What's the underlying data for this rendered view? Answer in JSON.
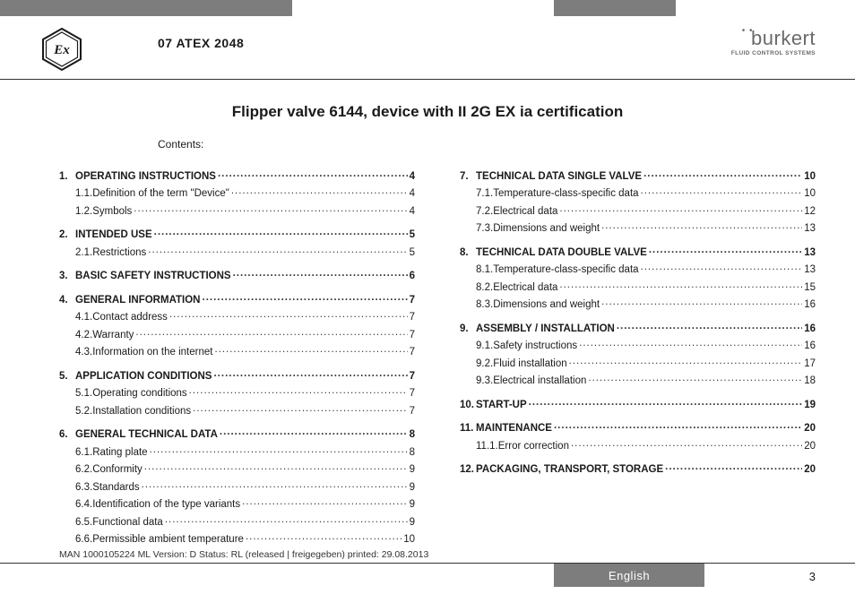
{
  "header": {
    "code": "07 ATEX 2048",
    "logo_name": "burkert",
    "logo_tag": "FLUID CONTROL SYSTEMS",
    "ex_label": "Ex"
  },
  "title": "Flipper valve 6144, device with II 2G EX ia certification",
  "contents_label": "Contents:",
  "colors": {
    "bar": "#7d7d7d",
    "text": "#1a1a1a",
    "logo": "#6a6a6a"
  },
  "toc_left": [
    {
      "type": "main",
      "num": "1.",
      "label": "OPERATING INSTRUCTIONS",
      "page": "4"
    },
    {
      "type": "sub",
      "num": "1.1.",
      "label": "Definition of the term \"Device\"",
      "page": "4"
    },
    {
      "type": "sub",
      "num": "1.2.",
      "label": "Symbols",
      "page": "4"
    },
    {
      "type": "main",
      "num": "2.",
      "label": "INTENDED USE",
      "page": "5"
    },
    {
      "type": "sub",
      "num": "2.1.",
      "label": "Restrictions",
      "page": "5"
    },
    {
      "type": "main",
      "num": "3.",
      "label": "BASIC SAFETY INSTRUCTIONS",
      "page": "6"
    },
    {
      "type": "main",
      "num": "4.",
      "label": "GENERAL INFORMATION",
      "page": "7"
    },
    {
      "type": "sub",
      "num": "4.1.",
      "label": "Contact address",
      "page": "7"
    },
    {
      "type": "sub",
      "num": "4.2.",
      "label": "Warranty",
      "page": "7"
    },
    {
      "type": "sub",
      "num": "4.3.",
      "label": "Information on the internet",
      "page": "7"
    },
    {
      "type": "main",
      "num": "5.",
      "label": "APPLICATION CONDITIONS",
      "page": "7"
    },
    {
      "type": "sub",
      "num": "5.1.",
      "label": "Operating conditions",
      "page": "7"
    },
    {
      "type": "sub",
      "num": "5.2.",
      "label": "Installation conditions",
      "page": "7"
    },
    {
      "type": "main",
      "num": "6.",
      "label": "GENERAL TECHNICAL DATA",
      "page": "8"
    },
    {
      "type": "sub",
      "num": "6.1.",
      "label": "Rating plate",
      "page": "8"
    },
    {
      "type": "sub",
      "num": "6.2.",
      "label": "Conformity",
      "page": "9"
    },
    {
      "type": "sub",
      "num": "6.3.",
      "label": "Standards",
      "page": "9"
    },
    {
      "type": "sub",
      "num": "6.4.",
      "label": "Identification of the type variants",
      "page": "9"
    },
    {
      "type": "sub",
      "num": "6.5.",
      "label": "Functional data",
      "page": "9"
    },
    {
      "type": "sub",
      "num": "6.6.",
      "label": "Permissible ambient temperature",
      "page": "10"
    }
  ],
  "toc_right": [
    {
      "type": "main",
      "num": "7.",
      "label": "TECHNICAL DATA SINGLE VALVE",
      "page": "10"
    },
    {
      "type": "sub",
      "num": "7.1.",
      "label": "Temperature-class-specific data",
      "page": "10"
    },
    {
      "type": "sub",
      "num": "7.2.",
      "label": "Electrical data",
      "page": "12"
    },
    {
      "type": "sub",
      "num": "7.3.",
      "label": "Dimensions and weight",
      "page": "13"
    },
    {
      "type": "main",
      "num": "8.",
      "label": "TECHNICAL DATA DOUBLE VALVE",
      "page": "13"
    },
    {
      "type": "sub",
      "num": "8.1.",
      "label": "Temperature-class-specific data",
      "page": "13"
    },
    {
      "type": "sub",
      "num": "8.2.",
      "label": "Electrical data",
      "page": "15"
    },
    {
      "type": "sub",
      "num": "8.3.",
      "label": "Dimensions and weight",
      "page": "16"
    },
    {
      "type": "main",
      "num": "9.",
      "label": "ASSEMBLY / INSTALLATION",
      "page": "16"
    },
    {
      "type": "sub",
      "num": "9.1.",
      "label": "Safety instructions",
      "page": "16"
    },
    {
      "type": "sub",
      "num": "9.2.",
      "label": "Fluid installation",
      "page": "17"
    },
    {
      "type": "sub",
      "num": "9.3.",
      "label": "Electrical installation",
      "page": "18"
    },
    {
      "type": "main",
      "num": "10.",
      "label": "START-UP",
      "page": "19"
    },
    {
      "type": "main",
      "num": "11.",
      "label": "MAINTENANCE",
      "page": "20"
    },
    {
      "type": "sub",
      "num": "11.1.",
      "label": "Error correction",
      "page": "20"
    },
    {
      "type": "main",
      "num": "12.",
      "label": "PACKAGING, TRANSPORT, STORAGE",
      "page": "20"
    }
  ],
  "footer": {
    "meta": "MAN 1000105224 ML Version: D Status: RL (released | freigegeben) printed: 29.08.2013",
    "language": "English",
    "page": "3"
  }
}
